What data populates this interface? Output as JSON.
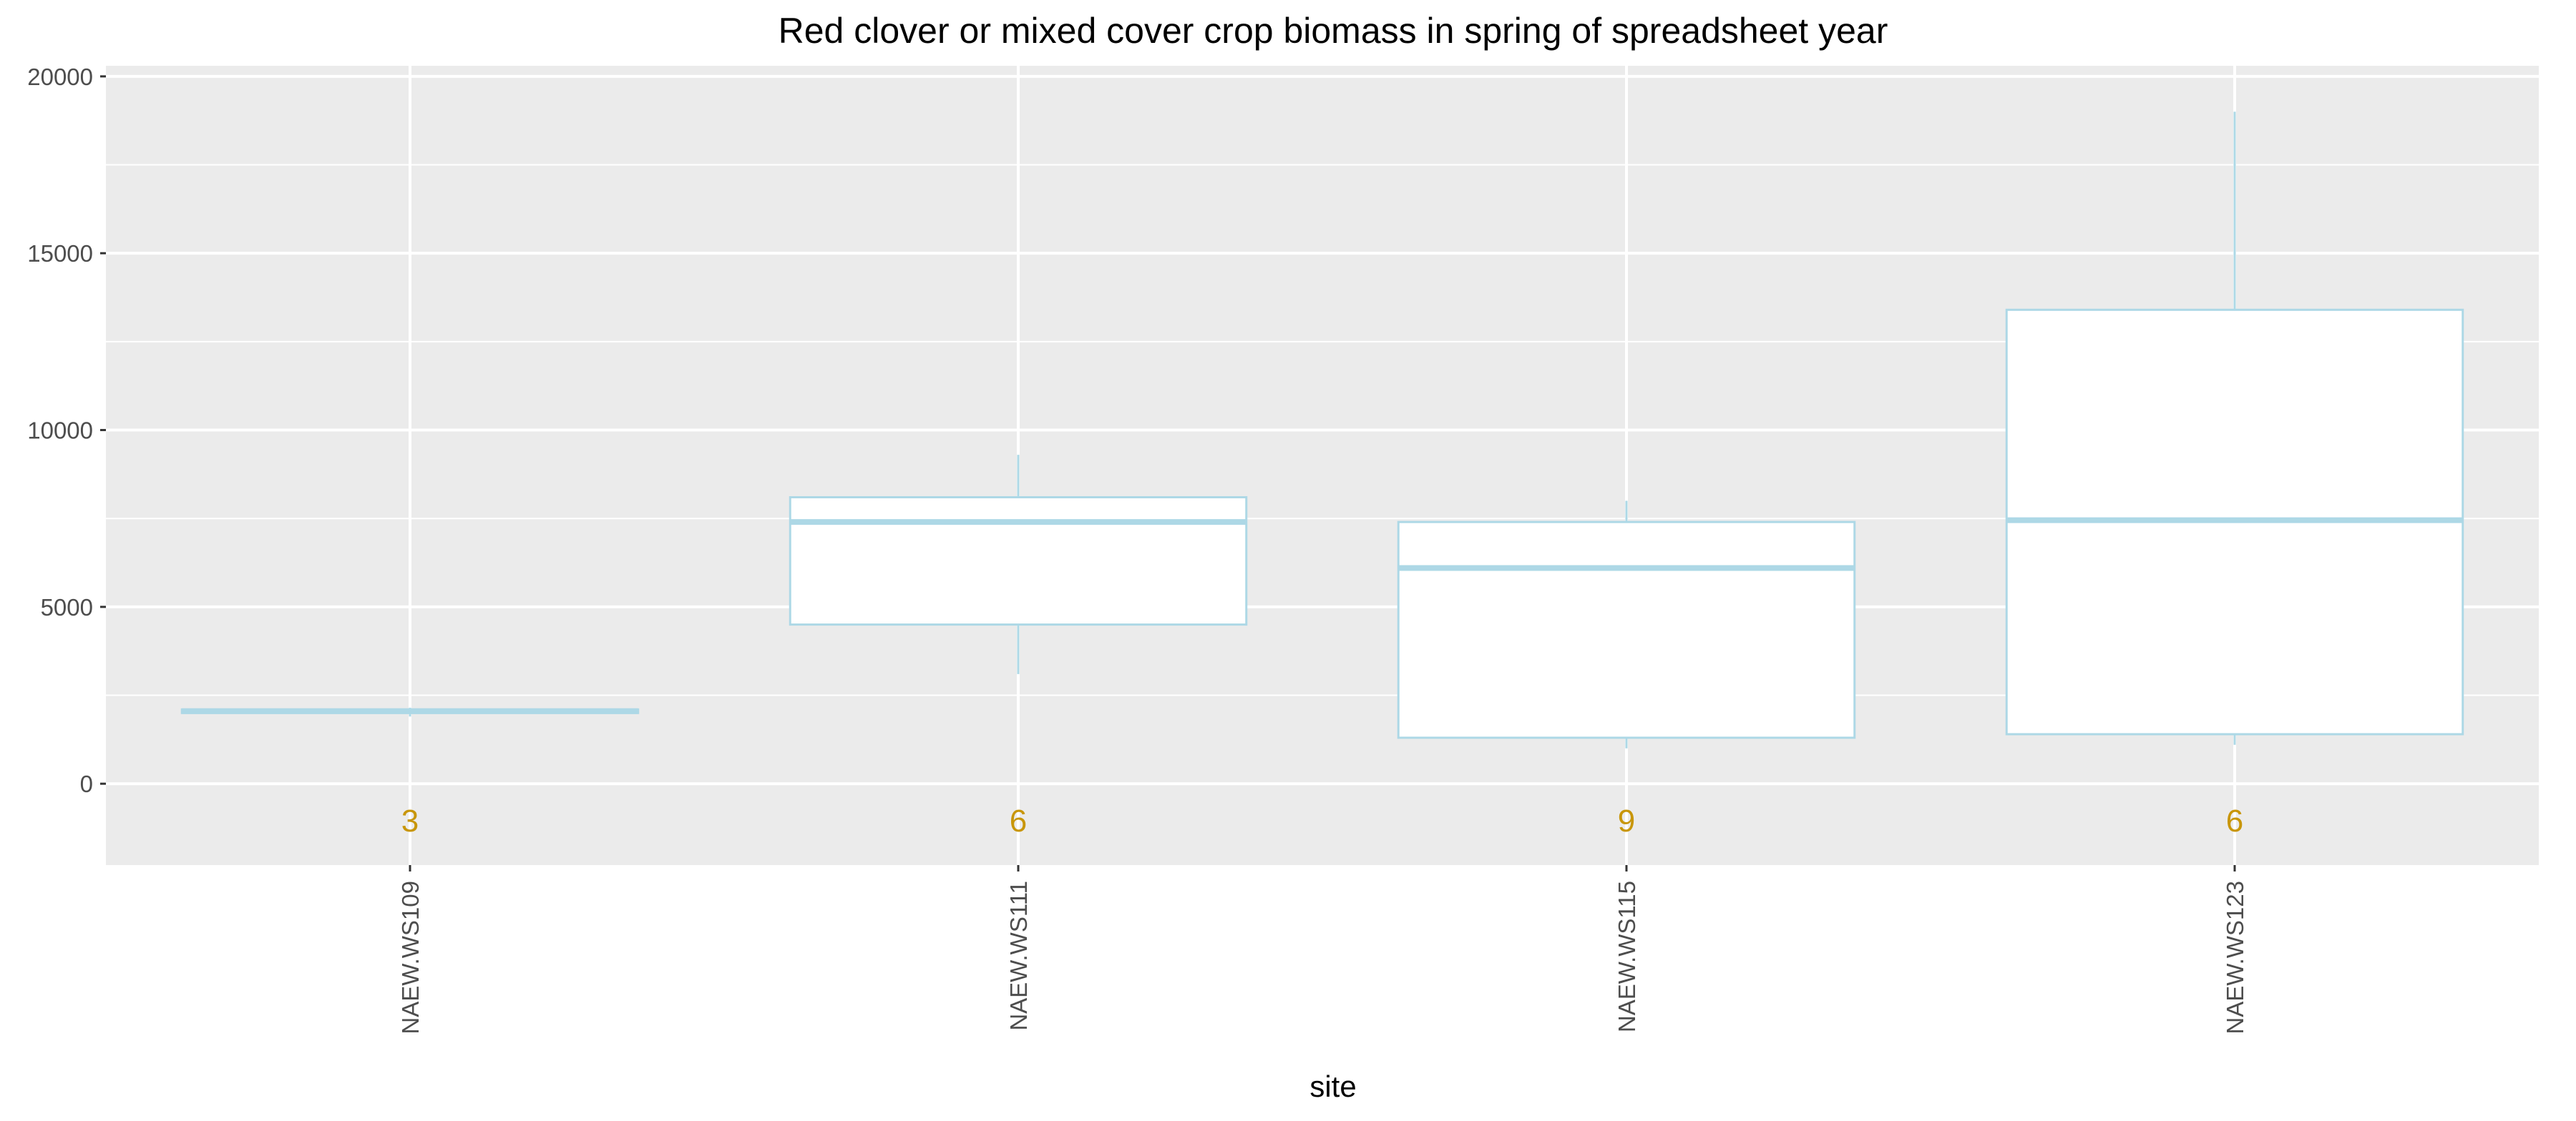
{
  "chart_data": {
    "type": "box",
    "title": "Red clover or mixed cover crop biomass in spring of spreadsheet year",
    "xlabel": "site",
    "ylabel": "",
    "ylim": [
      -2300,
      20300
    ],
    "y_ticks": [
      0,
      5000,
      10000,
      15000,
      20000
    ],
    "y_tick_labels": [
      "0",
      "5000",
      "10000",
      "15000",
      "20000"
    ],
    "grid": true,
    "categories": [
      "NAEW.WS109",
      "NAEW.WS111",
      "NAEW.WS115",
      "NAEW.WS123"
    ],
    "boxes": [
      {
        "site": "NAEW.WS109",
        "min": 1900,
        "q1": 2000,
        "median": 2050,
        "q3": 2100,
        "max": 2150,
        "n": "3"
      },
      {
        "site": "NAEW.WS111",
        "min": 3100,
        "q1": 4500,
        "median": 7400,
        "q3": 8100,
        "max": 9300,
        "n": "6"
      },
      {
        "site": "NAEW.WS115",
        "min": 1000,
        "q1": 1300,
        "median": 6100,
        "q3": 7400,
        "max": 8000,
        "n": "9"
      },
      {
        "site": "NAEW.WS123",
        "min": 1100,
        "q1": 1400,
        "median": 7450,
        "q3": 13400,
        "max": 19000,
        "n": "6"
      }
    ],
    "n_label_y": -1050,
    "colors": {
      "box_outline": "#add8e6",
      "box_fill": "#ffffff",
      "panel": "#ebebeb",
      "grid": "#ffffff",
      "n_label": "#c8960a"
    }
  }
}
